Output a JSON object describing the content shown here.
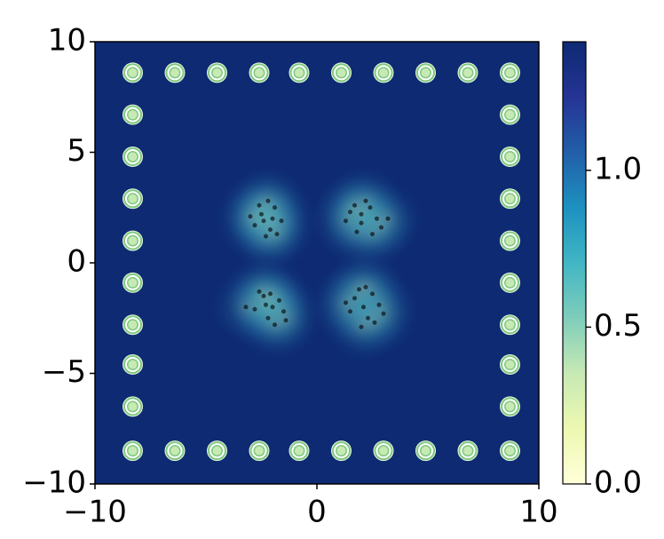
{
  "chart_data": {
    "type": "scatter",
    "background": "heatmap",
    "xlim": [
      -10,
      10
    ],
    "ylim": [
      -10,
      10
    ],
    "xticks": [
      {
        "value": -10,
        "label": "−10"
      },
      0,
      10
    ],
    "yticks": [
      {
        "value": -10,
        "label": "−10"
      },
      {
        "value": -5,
        "label": "−5"
      },
      0,
      5,
      10
    ],
    "colorbar": {
      "lim": [
        0,
        1.41
      ],
      "ticks": [
        {
          "value": 0,
          "label": "0.0"
        },
        0.5,
        {
          "value": 1,
          "label": "1.0"
        }
      ],
      "colormap": [
        "#ffffd9",
        "#edf8b1",
        "#c7e9b4",
        "#7fcdbb",
        "#41b6c4",
        "#1d91c0",
        "#225ea8",
        "#253494",
        "#0d2a72"
      ]
    },
    "series": [
      {
        "color": "#000000",
        "marker": "dot",
        "x": [
          -2.5,
          -2.1,
          -1.9,
          -2.8,
          -2.3,
          -1.6,
          -2.0,
          -2.6,
          -2.4,
          -1.8,
          -2.2,
          -3.0,
          1.5,
          2.0,
          2.4,
          1.8,
          2.7,
          2.2,
          1.3,
          2.9,
          2.0,
          1.7,
          2.5,
          3.2,
          -2.4,
          -2.0,
          -1.7,
          -2.8,
          -2.2,
          -1.5,
          -2.6,
          -1.9,
          -2.3,
          -3.2,
          -1.4,
          -2.1,
          1.7,
          2.1,
          2.5,
          1.5,
          2.3,
          2.8,
          1.9,
          2.6,
          1.3,
          2.2,
          3.0,
          2.0
        ],
        "y": [
          2.2,
          1.5,
          2.5,
          1.7,
          1.2,
          1.9,
          2.0,
          2.6,
          1.9,
          1.3,
          2.8,
          2.1,
          2.3,
          1.8,
          2.5,
          1.4,
          2.0,
          2.8,
          1.9,
          1.6,
          2.2,
          2.6,
          1.3,
          2.0,
          -1.5,
          -2.0,
          -1.7,
          -2.1,
          -2.5,
          -2.2,
          -1.3,
          -2.8,
          -1.9,
          -2.0,
          -2.6,
          -1.4,
          -1.6,
          -2.0,
          -1.4,
          -2.2,
          -2.5,
          -1.9,
          -1.2,
          -2.7,
          -1.8,
          -1.1,
          -2.3,
          -2.9
        ]
      },
      {
        "color": "#7fc97f",
        "marker": "ring",
        "x": [
          -8.3,
          -6.4,
          -4.5,
          -2.6,
          -0.8,
          1.1,
          3.0,
          4.9,
          6.8,
          8.7,
          -8.3,
          -6.4,
          -4.5,
          -2.6,
          -0.8,
          1.1,
          3.0,
          4.9,
          6.8,
          8.7,
          -8.3,
          -8.3,
          -8.3,
          -8.3,
          -8.3,
          -8.3,
          -8.3,
          -8.3,
          8.7,
          8.7,
          8.7,
          8.7,
          8.7,
          8.7,
          8.7,
          8.7
        ],
        "y": [
          8.6,
          8.6,
          8.6,
          8.6,
          8.6,
          8.6,
          8.6,
          8.6,
          8.6,
          8.6,
          -8.5,
          -8.5,
          -8.5,
          -8.5,
          -8.5,
          -8.5,
          -8.5,
          -8.5,
          -8.5,
          -8.5,
          6.7,
          4.8,
          2.9,
          1.0,
          -0.9,
          -2.8,
          -4.6,
          -6.5,
          6.7,
          4.8,
          2.9,
          1.0,
          -0.9,
          -2.8,
          -4.6,
          -6.5
        ]
      }
    ]
  }
}
